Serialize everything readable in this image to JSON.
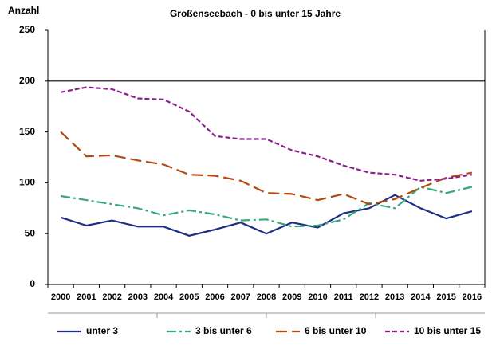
{
  "chart_data": {
    "type": "line",
    "title": "Großenseebach  - 0 bis unter 15 Jahre",
    "y_label": "Anzahl",
    "categories": [
      "2000",
      "2001",
      "2002",
      "2003",
      "2004",
      "2005",
      "2006",
      "2007",
      "2008",
      "2009",
      "2010",
      "2011",
      "2012",
      "2013",
      "2014",
      "2015",
      "2016"
    ],
    "series": [
      {
        "name": "unter 3",
        "color": "#1f2f86",
        "dash": "solid",
        "values": [
          66,
          58,
          63,
          57,
          57,
          48,
          54,
          61,
          50,
          61,
          56,
          70,
          75,
          88,
          75,
          65,
          72
        ]
      },
      {
        "name": "3 bis unter 6",
        "color": "#3aa97a",
        "dash": "dashdot",
        "values": [
          87,
          83,
          79,
          75,
          68,
          73,
          69,
          63,
          64,
          57,
          58,
          64,
          80,
          75,
          96,
          90,
          96
        ]
      },
      {
        "name": "6 bis unter 10",
        "color": "#b24a12",
        "dash": "dashed",
        "values": [
          150,
          126,
          127,
          122,
          118,
          108,
          107,
          102,
          90,
          89,
          83,
          89,
          79,
          84,
          95,
          105,
          110
        ]
      },
      {
        "name": "10 bis unter 15",
        "color": "#8b1f8f",
        "dash": "dotted-dash",
        "values": [
          189,
          194,
          192,
          183,
          182,
          170,
          146,
          143,
          143,
          132,
          126,
          117,
          110,
          108,
          102,
          104,
          108
        ]
      }
    ],
    "ylim": [
      0,
      250
    ],
    "yticks": [
      0,
      50,
      100,
      150,
      200,
      250
    ],
    "hlines": [
      200
    ],
    "legend": "bottom"
  }
}
